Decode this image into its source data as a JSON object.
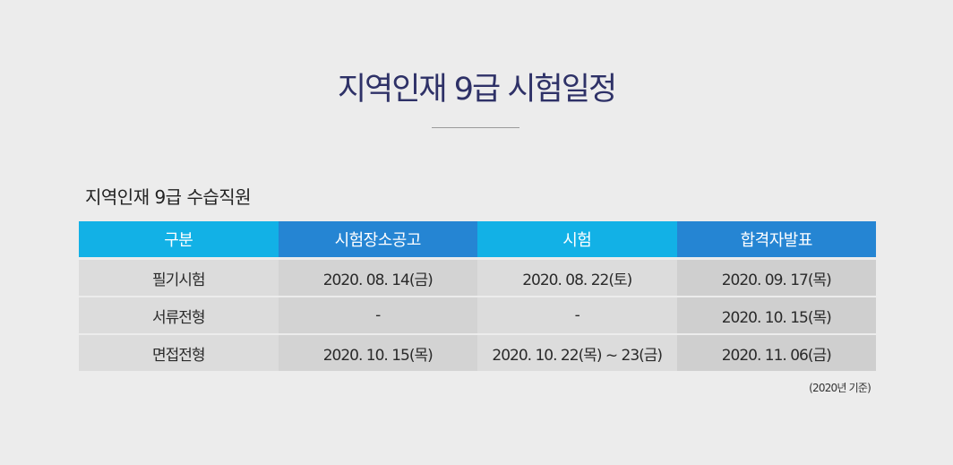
{
  "page": {
    "title": "지역인재 9급 시험일정",
    "section_title": "지역인재  9급 수습직원",
    "footnote": "(2020년 기준)"
  },
  "table": {
    "headers": [
      {
        "label": "구분",
        "color": "#12b1e6"
      },
      {
        "label": "시험장소공고",
        "color": "#2585d3"
      },
      {
        "label": "시험",
        "color": "#12b1e6"
      },
      {
        "label": "합격자발표",
        "color": "#2585d3"
      }
    ],
    "rows": [
      {
        "category": "필기시험",
        "venue_notice": "2020. 08. 14(금)",
        "exam": "2020. 08. 22(토)",
        "announcement": "2020. 09. 17(목)"
      },
      {
        "category": "서류전형",
        "venue_notice": "-",
        "exam": "-",
        "announcement": "2020. 10. 15(목)"
      },
      {
        "category": "면접전형",
        "venue_notice": "2020. 10. 15(목)",
        "exam": "2020. 10. 22(목) ~ 23(금)",
        "announcement": "2020. 11. 06(금)"
      }
    ]
  }
}
